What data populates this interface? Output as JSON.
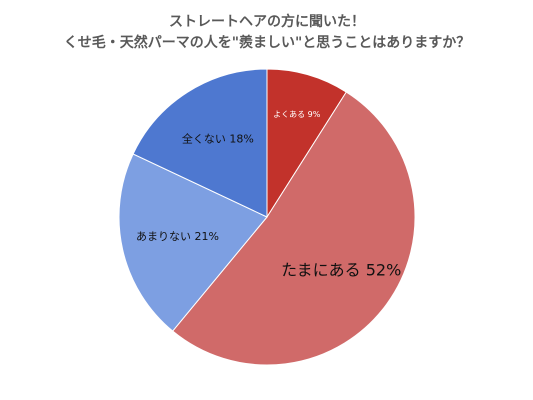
{
  "chart_data": {
    "type": "pie",
    "title": [
      "ストレートヘアの方に聞いた！",
      "くせ毛・天然パーマの人を\"羨ましい\"と思うことはありますか？"
    ],
    "values": [
      9,
      52,
      21,
      18
    ],
    "value_labels": [
      "よくある 9%",
      "たまにある 52%",
      "あまりない 21%",
      "全くない 18%"
    ],
    "colors": [
      "#c2322b",
      "#d06a69",
      "#7d9fe2",
      "#4e78d0"
    ]
  }
}
